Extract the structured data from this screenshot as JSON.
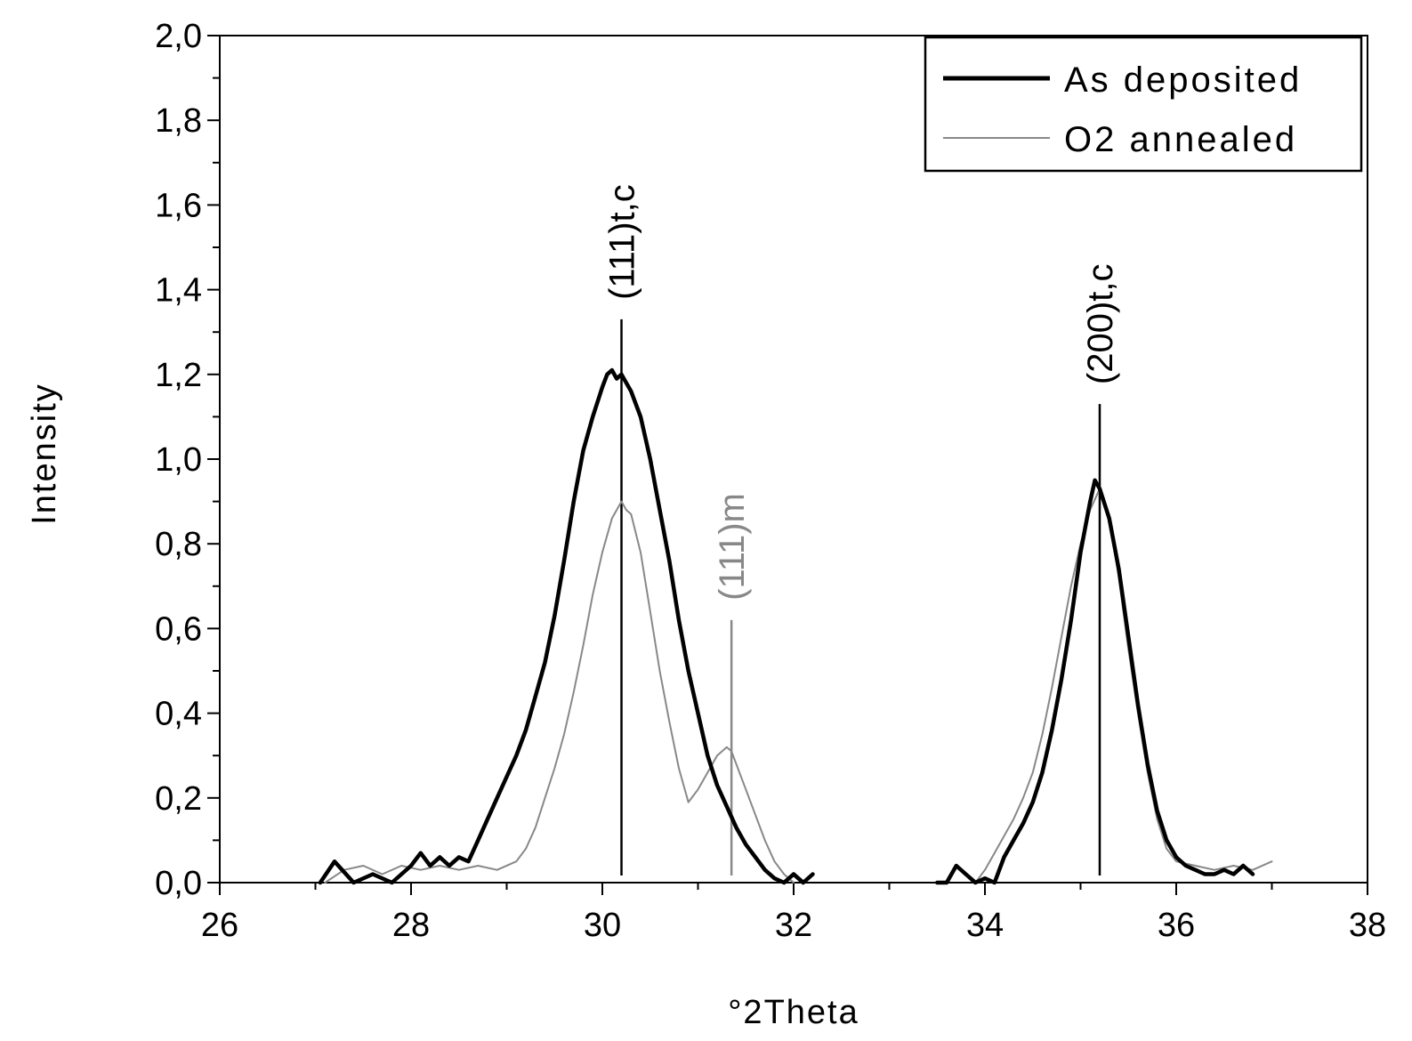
{
  "chart_data": {
    "type": "line",
    "title": "",
    "xlabel": "°2Theta",
    "ylabel": "Intensity",
    "xlim": [
      26,
      38
    ],
    "ylim": [
      0.0,
      2.0
    ],
    "x_ticks": [
      "26",
      "28",
      "30",
      "32",
      "34",
      "36",
      "38"
    ],
    "y_ticks": [
      "0,0",
      "0,2",
      "0,4",
      "0,6",
      "0,8",
      "1,0",
      "1,2",
      "1,4",
      "1,6",
      "1,8",
      "2,0"
    ],
    "legend_position": "top-right",
    "grid": false,
    "series": [
      {
        "name": "As deposited",
        "color": "#000000",
        "segments": [
          {
            "x": [
              27.05,
              27.2,
              27.4,
              27.6,
              27.8,
              28.0,
              28.1,
              28.2,
              28.3,
              28.4,
              28.5,
              28.6,
              28.7,
              28.8,
              28.9,
              29.0,
              29.1,
              29.2,
              29.3,
              29.4,
              29.5,
              29.6,
              29.7,
              29.8,
              29.9,
              30.0,
              30.05,
              30.1,
              30.15,
              30.2,
              30.3,
              30.4,
              30.5,
              30.6,
              30.7,
              30.8,
              30.9,
              31.0,
              31.1,
              31.2,
              31.3,
              31.4,
              31.5,
              31.6,
              31.7,
              31.8,
              31.9,
              32.0,
              32.1,
              32.2
            ],
            "y": [
              0.0,
              0.05,
              0.0,
              0.02,
              0.0,
              0.04,
              0.07,
              0.04,
              0.06,
              0.04,
              0.06,
              0.05,
              0.1,
              0.15,
              0.2,
              0.25,
              0.3,
              0.36,
              0.44,
              0.52,
              0.63,
              0.76,
              0.9,
              1.02,
              1.1,
              1.17,
              1.2,
              1.21,
              1.19,
              1.2,
              1.16,
              1.1,
              1.0,
              0.88,
              0.76,
              0.62,
              0.5,
              0.4,
              0.3,
              0.23,
              0.18,
              0.13,
              0.09,
              0.06,
              0.03,
              0.01,
              0.0,
              0.02,
              0.0,
              0.02
            ]
          },
          {
            "x": [
              33.5,
              33.6,
              33.7,
              33.8,
              33.9,
              34.0,
              34.1,
              34.2,
              34.3,
              34.4,
              34.5,
              34.6,
              34.7,
              34.8,
              34.9,
              35.0,
              35.1,
              35.15,
              35.2,
              35.3,
              35.4,
              35.5,
              35.6,
              35.7,
              35.8,
              35.9,
              36.0,
              36.1,
              36.2,
              36.3,
              36.4,
              36.5,
              36.6,
              36.7,
              36.8
            ],
            "y": [
              0.0,
              0.0,
              0.04,
              0.02,
              0.0,
              0.01,
              0.0,
              0.06,
              0.1,
              0.14,
              0.19,
              0.26,
              0.36,
              0.48,
              0.62,
              0.78,
              0.9,
              0.95,
              0.93,
              0.86,
              0.74,
              0.58,
              0.42,
              0.28,
              0.17,
              0.1,
              0.06,
              0.04,
              0.03,
              0.02,
              0.02,
              0.03,
              0.02,
              0.04,
              0.02
            ]
          }
        ]
      },
      {
        "name": "O2 annealed",
        "color": "#888888",
        "segments": [
          {
            "x": [
              27.1,
              27.3,
              27.5,
              27.7,
              27.9,
              28.1,
              28.3,
              28.5,
              28.7,
              28.9,
              29.1,
              29.2,
              29.3,
              29.4,
              29.5,
              29.6,
              29.7,
              29.8,
              29.9,
              30.0,
              30.1,
              30.2,
              30.25,
              30.3,
              30.4,
              30.5,
              30.6,
              30.7,
              30.8,
              30.9,
              31.0,
              31.1,
              31.2,
              31.3,
              31.35,
              31.4,
              31.5,
              31.6,
              31.7,
              31.8,
              31.9,
              32.0
            ],
            "y": [
              0.0,
              0.03,
              0.04,
              0.02,
              0.04,
              0.03,
              0.04,
              0.03,
              0.04,
              0.03,
              0.05,
              0.08,
              0.13,
              0.2,
              0.27,
              0.35,
              0.45,
              0.56,
              0.68,
              0.78,
              0.86,
              0.9,
              0.88,
              0.87,
              0.78,
              0.64,
              0.5,
              0.38,
              0.27,
              0.19,
              0.22,
              0.26,
              0.3,
              0.32,
              0.31,
              0.28,
              0.22,
              0.16,
              0.1,
              0.05,
              0.02,
              0.0
            ]
          },
          {
            "x": [
              33.9,
              34.0,
              34.1,
              34.2,
              34.3,
              34.4,
              34.5,
              34.6,
              34.7,
              34.8,
              34.9,
              35.0,
              35.1,
              35.2,
              35.3,
              35.4,
              35.5,
              35.6,
              35.7,
              35.8,
              35.9,
              36.0,
              36.2,
              36.4,
              36.6,
              36.8,
              37.0
            ],
            "y": [
              0.0,
              0.03,
              0.07,
              0.11,
              0.15,
              0.2,
              0.26,
              0.35,
              0.46,
              0.58,
              0.7,
              0.8,
              0.88,
              0.93,
              0.86,
              0.72,
              0.55,
              0.4,
              0.26,
              0.15,
              0.08,
              0.05,
              0.04,
              0.03,
              0.04,
              0.03,
              0.05
            ]
          }
        ]
      }
    ],
    "annotations": [
      {
        "label": "(111)t,c",
        "x": 30.2,
        "y_top": 1.33,
        "color": "#000000"
      },
      {
        "label": "(111)m",
        "x": 31.35,
        "y_top": 0.62,
        "color": "#888888"
      },
      {
        "label": "(200)t,c",
        "x": 35.2,
        "y_top": 1.13,
        "color": "#000000"
      }
    ]
  }
}
